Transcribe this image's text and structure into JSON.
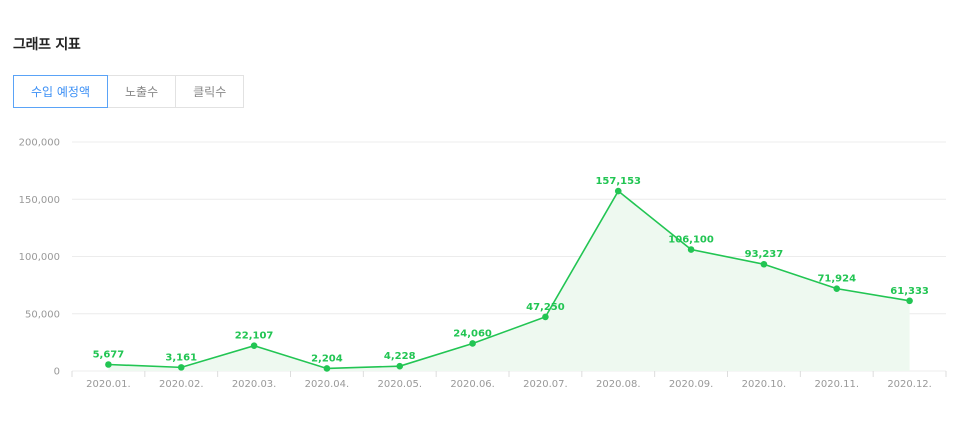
{
  "header": {
    "title": "그래프 지표"
  },
  "tabs": [
    {
      "label": "수입 예정액",
      "active": true
    },
    {
      "label": "노출수",
      "active": false
    },
    {
      "label": "클릭수",
      "active": false
    }
  ],
  "colors": {
    "line": "#22c553",
    "area": "#eef9f0",
    "grid": "#ececec",
    "accent": "#3b8ff5"
  },
  "chart_data": {
    "type": "area",
    "categories": [
      "2020.01.",
      "2020.02.",
      "2020.03.",
      "2020.04.",
      "2020.05.",
      "2020.06.",
      "2020.07.",
      "2020.08.",
      "2020.09.",
      "2020.10.",
      "2020.11.",
      "2020.12."
    ],
    "values": [
      5677,
      3161,
      22107,
      2204,
      4228,
      24060,
      47250,
      157153,
      106100,
      93237,
      71924,
      61333
    ],
    "value_labels": [
      "5,677",
      "3,161",
      "22,107",
      "2,204",
      "4,228",
      "24,060",
      "47,250",
      "157,153",
      "106,100",
      "93,237",
      "71,924",
      "61,333"
    ],
    "yticks": [
      "0",
      "50,000",
      "100,000",
      "150,000",
      "200,000"
    ],
    "ytick_values": [
      0,
      50000,
      100000,
      150000,
      200000
    ],
    "ylim": [
      0,
      200000
    ],
    "grid": true,
    "legend": "none"
  }
}
